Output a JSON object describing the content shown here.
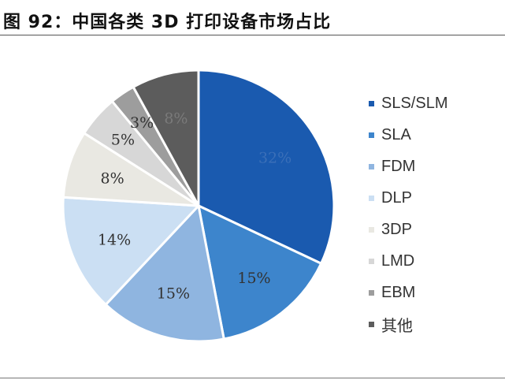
{
  "title": "图 92：中国各类 3D 打印设备市场占比",
  "chart_data": {
    "type": "pie",
    "title": "中国各类 3D 打印设备市场占比",
    "legend_position": "right",
    "slices": [
      {
        "label": "SLS/SLM",
        "value": 32,
        "display": "32%",
        "color": "#1a5aaf"
      },
      {
        "label": "SLA",
        "value": 15,
        "display": "15%",
        "color": "#3d85cc"
      },
      {
        "label": "FDM",
        "value": 15,
        "display": "15%",
        "color": "#8fb5e0"
      },
      {
        "label": "DLP",
        "value": 14,
        "display": "14%",
        "color": "#cbdff3"
      },
      {
        "label": "3DP",
        "value": 8,
        "display": "8%",
        "color": "#e9e8e2"
      },
      {
        "label": "LMD",
        "value": 5,
        "display": "5%",
        "color": "#d7d7d7"
      },
      {
        "label": "EBM",
        "value": 3,
        "display": "3%",
        "color": "#9d9d9d"
      },
      {
        "label": "其他",
        "value": 8,
        "display": "8%",
        "color": "#5c5c5c"
      }
    ]
  }
}
